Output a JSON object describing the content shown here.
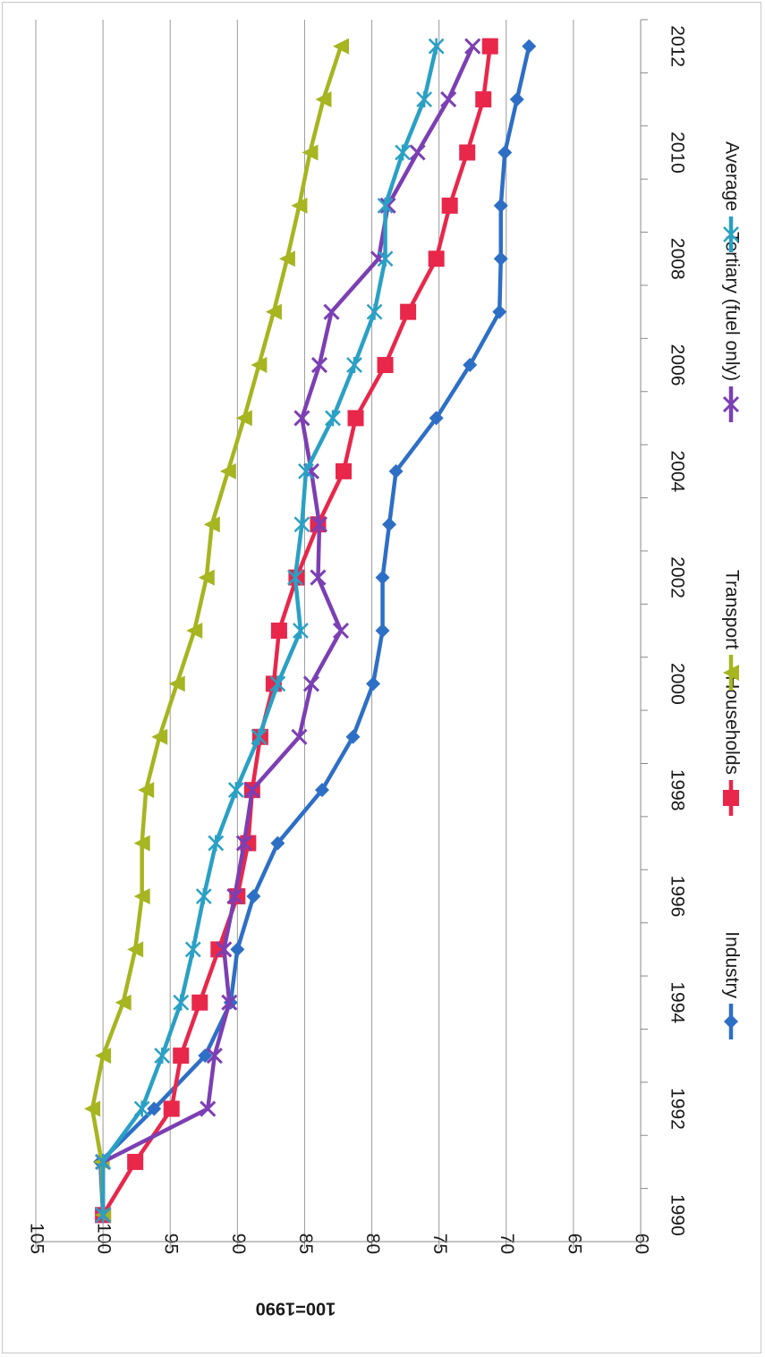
{
  "chart_data": {
    "type": "line",
    "title": "",
    "xlabel": "",
    "ylabel": "100=1990",
    "x": [
      1990,
      1991,
      1992,
      1993,
      1994,
      1995,
      1996,
      1997,
      1998,
      1999,
      2000,
      2001,
      2002,
      2003,
      2004,
      2005,
      2006,
      2007,
      2008,
      2009,
      2010,
      2011,
      2012
    ],
    "x_tick_labels": [
      "1990",
      "1992",
      "1994",
      "1996",
      "1998",
      "2000",
      "2002",
      "2004",
      "2006",
      "2008",
      "2010",
      "2012"
    ],
    "y_tick_labels": [
      "105",
      "100",
      "95",
      "90",
      "85",
      "80",
      "75",
      "70",
      "65",
      "60"
    ],
    "ylim": [
      60,
      105
    ],
    "xlim": [
      1989.5,
      2012.5
    ],
    "grid": true,
    "legend_position": "bottom",
    "orientation": "rotated 90 degrees clockwise",
    "series": [
      {
        "name": "Industry",
        "color": "#2e6fc6",
        "marker": "diamond",
        "values": [
          100,
          100.2,
          96.2,
          92.4,
          90.5,
          90,
          88.8,
          87,
          83.7,
          81.4,
          79.9,
          79.2,
          79.2,
          78.7,
          78.2,
          75.2,
          72.7,
          70.5,
          70.4,
          70.4,
          70.1,
          69.2,
          68.3
        ]
      },
      {
        "name": "Households",
        "color": "#e8274b",
        "marker": "square",
        "values": [
          100,
          97.6,
          94.9,
          94.2,
          92.8,
          91.4,
          90,
          89.2,
          88.9,
          88.3,
          87.3,
          86.9,
          85.6,
          84,
          82.1,
          81.2,
          79,
          77.3,
          75.2,
          74.2,
          72.9,
          71.7,
          71.2
        ]
      },
      {
        "name": "Transport",
        "color": "#a6b520",
        "marker": "triangle",
        "values": [
          100,
          100.1,
          100.8,
          100,
          98.5,
          97.6,
          97.1,
          97.1,
          96.8,
          95.8,
          94.5,
          93.2,
          92.3,
          91.9,
          90.7,
          89.5,
          88.4,
          87.3,
          86.3,
          85.4,
          84.6,
          83.6,
          82.3
        ]
      },
      {
        "name": "Tertiary (fuel only)",
        "color": "#7c3fb3",
        "marker": "x",
        "values": [
          100,
          100,
          92.2,
          91.7,
          90.6,
          91,
          90.2,
          89.5,
          88.9,
          85.4,
          84.5,
          82.3,
          84,
          83.9,
          84.5,
          85.2,
          83.9,
          83,
          79.5,
          78.8,
          76.6,
          74.3,
          72.5
        ]
      },
      {
        "name": "Average",
        "color": "#2aa0c4",
        "marker": "asterisk",
        "values": [
          100,
          100,
          97.1,
          95.6,
          94.2,
          93.3,
          92.5,
          91.6,
          90.1,
          88.4,
          87,
          85.3,
          85.7,
          85.2,
          84.9,
          82.9,
          81.3,
          79.8,
          79,
          79,
          77.7,
          76.1,
          75.2
        ]
      }
    ]
  }
}
